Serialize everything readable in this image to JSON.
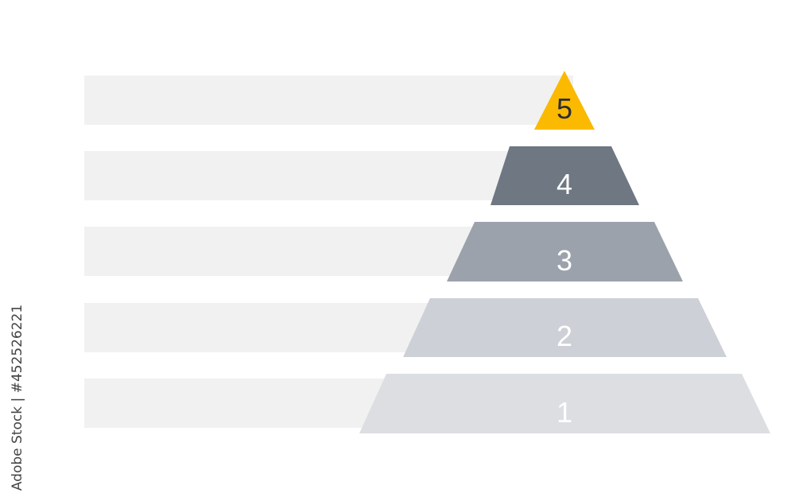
{
  "levels": [
    {
      "label": "1",
      "color": "#dcdee2",
      "text_color": "#ffffff"
    },
    {
      "label": "2",
      "color": "#cdd0d6",
      "text_color": "#ffffff"
    },
    {
      "label": "3",
      "color": "#9ca2ab",
      "text_color": "#ffffff"
    },
    {
      "label": "4",
      "color": "#6f7782",
      "text_color": "#ffffff"
    },
    {
      "label": "5",
      "color": "#fbb900",
      "text_color": "#2a2e36"
    }
  ],
  "bar_color": "#f1f1f1",
  "watermark": "Adobe Stock | #452526221"
}
